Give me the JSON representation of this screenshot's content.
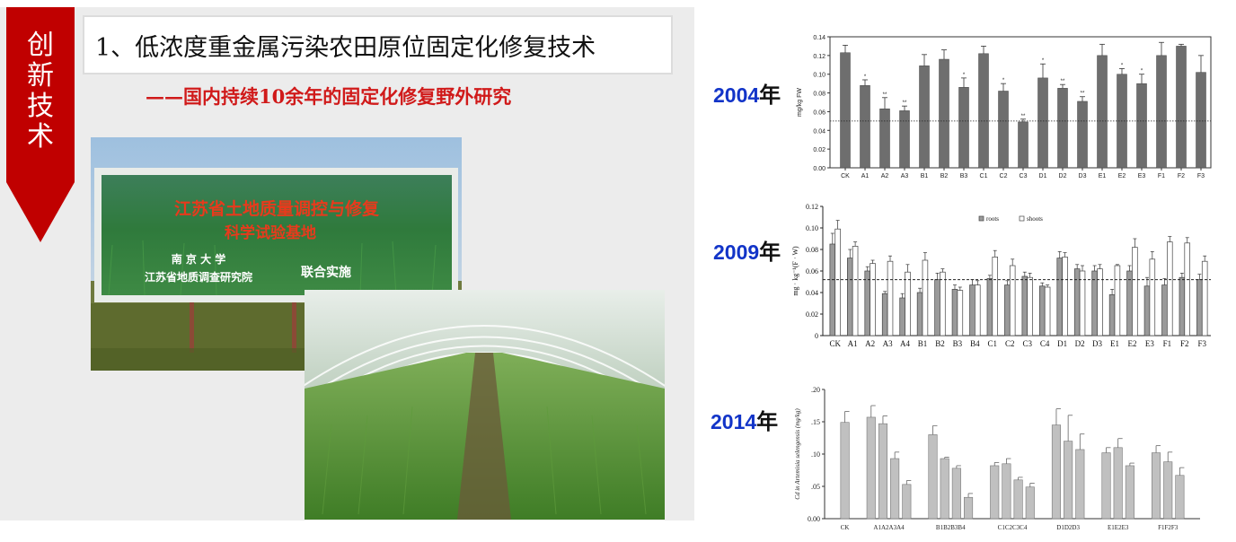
{
  "side_tab": {
    "chars": [
      "创",
      "新",
      "技",
      "术"
    ],
    "color": "#c00000"
  },
  "title": "1、低浓度重金属污染农田原位固定化修复技术",
  "subtitle": "——国内持续10余年的固定化修复野外研究",
  "photo_sign": {
    "line1": "江苏省土地质量调控与修复",
    "line2": "科学试验基地",
    "line3": "南 京 大 学",
    "line4": "江苏省地质调查研究院",
    "line5": "联合实施"
  },
  "year_labels": [
    {
      "year": "2004",
      "suffix": "年"
    },
    {
      "year": "2009",
      "suffix": "年"
    },
    {
      "year": "2014",
      "suffix": "年"
    }
  ],
  "chart_data": [
    {
      "type": "bar",
      "ylabel": "mg/kg FW",
      "ylim": [
        0,
        0.14
      ],
      "yticks": [
        "0.00",
        "0.02",
        "0.04",
        "0.06",
        "0.08",
        "0.10",
        "0.12",
        "0.14"
      ],
      "reference_line": 0.05,
      "categories": [
        "CK",
        "A1",
        "A2",
        "A3",
        "B1",
        "B2",
        "B3",
        "C1",
        "C2",
        "C3",
        "D1",
        "D2",
        "D3",
        "E1",
        "E2",
        "E3",
        "F1",
        "F2",
        "F3"
      ],
      "values": [
        0.123,
        0.088,
        0.063,
        0.061,
        0.109,
        0.116,
        0.086,
        0.122,
        0.082,
        0.049,
        0.096,
        0.085,
        0.071,
        0.12,
        0.1,
        0.09,
        0.12,
        0.13,
        0.102
      ],
      "errors": [
        0.008,
        0.006,
        0.012,
        0.005,
        0.012,
        0.01,
        0.01,
        0.008,
        0.008,
        0.003,
        0.015,
        0.004,
        0.005,
        0.012,
        0.006,
        0.01,
        0.014,
        0.002,
        0.018
      ],
      "significance": [
        "",
        "*",
        "**",
        "**",
        "",
        "",
        "*",
        "",
        "*",
        "**",
        "*",
        "**",
        "**",
        "",
        "*",
        "*",
        "",
        "",
        ""
      ],
      "bar_color": "#6e6e6e"
    },
    {
      "type": "bar",
      "ylabel": "mg · kg⁻¹(F · W)",
      "ylim": [
        0,
        0.12
      ],
      "yticks": [
        "0",
        "0.02",
        "0.04",
        "0.06",
        "0.08",
        "0.10",
        "0.12"
      ],
      "reference_line": 0.052,
      "categories": [
        "CK",
        "A1",
        "A2",
        "A3",
        "A4",
        "B1",
        "B2",
        "B3",
        "B4",
        "C1",
        "C2",
        "C3",
        "C4",
        "D1",
        "D2",
        "D3",
        "E1",
        "E2",
        "E3",
        "F1",
        "F2",
        "F3"
      ],
      "series": [
        {
          "name": "roots",
          "values": [
            0.085,
            0.072,
            0.06,
            0.039,
            0.035,
            0.04,
            0.052,
            0.043,
            0.047,
            0.053,
            0.047,
            0.055,
            0.046,
            0.072,
            0.062,
            0.06,
            0.038,
            0.06,
            0.046,
            0.047,
            0.054,
            0.052
          ],
          "errors": [
            0.01,
            0.008,
            0.004,
            0.002,
            0.004,
            0.004,
            0.006,
            0.004,
            0.005,
            0.003,
            0.004,
            0.004,
            0.003,
            0.006,
            0.004,
            0.005,
            0.005,
            0.005,
            0.008,
            0.006,
            0.004,
            0.005
          ],
          "color": "#9a9a9a"
        },
        {
          "name": "shoots",
          "values": [
            0.099,
            0.083,
            0.067,
            0.069,
            0.059,
            0.07,
            0.059,
            0.042,
            0.047,
            0.073,
            0.065,
            0.054,
            0.045,
            0.073,
            0.06,
            0.062,
            0.065,
            0.082,
            0.071,
            0.087,
            0.086,
            0.069
          ],
          "errors": [
            0.008,
            0.004,
            0.003,
            0.005,
            0.007,
            0.007,
            0.003,
            0.003,
            0.004,
            0.006,
            0.006,
            0.004,
            0.002,
            0.004,
            0.005,
            0.004,
            0.001,
            0.008,
            0.007,
            0.005,
            0.005,
            0.005
          ],
          "color": "#ffffff"
        }
      ],
      "legend": "top-center"
    },
    {
      "type": "bar",
      "ylabel": "Cd in Artemisia selengensis (mg/kg)",
      "ylim": [
        0,
        0.2
      ],
      "yticks": [
        "0.00",
        ".05",
        ".10",
        ".15",
        ".20"
      ],
      "categories": [
        "CK",
        "A1",
        "A2",
        "A3",
        "A4",
        "B1",
        "B2",
        "B3",
        "B4",
        "C1",
        "C2",
        "C3",
        "C4",
        "D1",
        "D2",
        "D3",
        "E1",
        "E2",
        "E3",
        "F1",
        "F2",
        "F3"
      ],
      "group_labels": [
        "CK",
        "A1A2A3A4",
        "B1B2B3B4",
        "C1C2C3C4",
        "D1D2D3",
        "E1E2E3",
        "F1F2F3"
      ],
      "groups": [
        1,
        4,
        4,
        4,
        3,
        3,
        3
      ],
      "values": [
        0.149,
        0.157,
        0.147,
        0.093,
        0.053,
        0.13,
        0.093,
        0.078,
        0.033,
        0.082,
        0.085,
        0.06,
        0.049,
        0.145,
        0.12,
        0.107,
        0.102,
        0.11,
        0.082,
        0.102,
        0.088,
        0.067
      ],
      "errors": [
        0.017,
        0.018,
        0.012,
        0.01,
        0.006,
        0.014,
        0.002,
        0.004,
        0.006,
        0.005,
        0.008,
        0.004,
        0.006,
        0.025,
        0.04,
        0.024,
        0.008,
        0.014,
        0.004,
        0.011,
        0.015,
        0.012
      ],
      "bar_color": "#c0c0c0"
    }
  ]
}
